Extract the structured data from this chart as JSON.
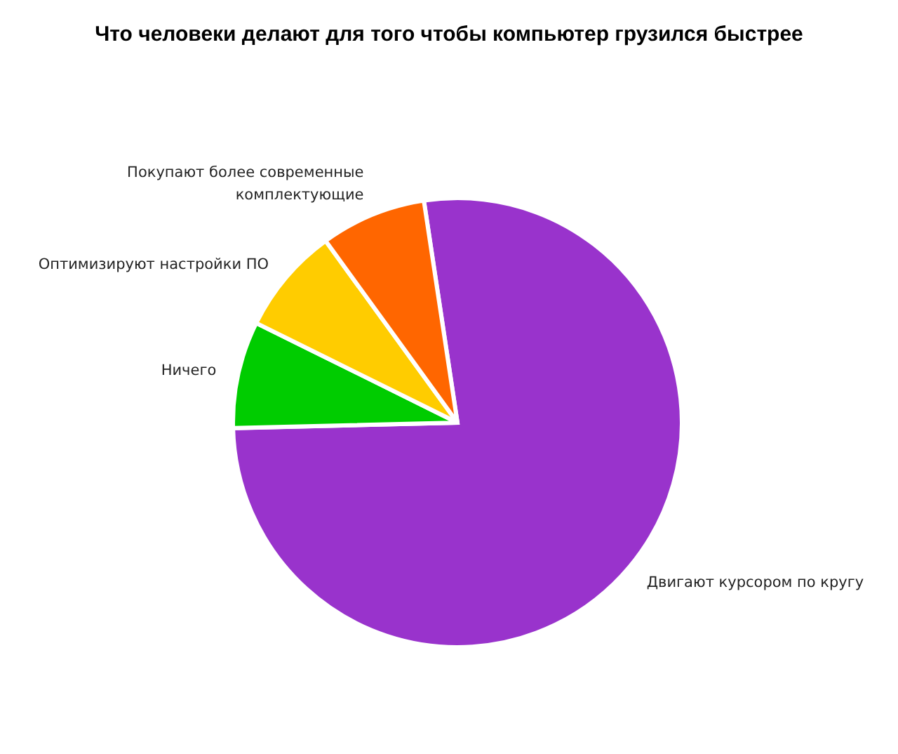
{
  "chart_data": {
    "type": "pie",
    "title": "Что человеки делают для того чтобы компьютер грузился быстрее",
    "categories": [
      "Двигают курсором по кругу",
      "Ничего",
      "Оптимизируют настройки ПО",
      "Покупают более современные комплектующие"
    ],
    "values": [
      77,
      7.7,
      7.7,
      7.6
    ],
    "colors": [
      "#9933cc",
      "#00cc00",
      "#ffcc00",
      "#ff6600"
    ],
    "legend": false
  }
}
